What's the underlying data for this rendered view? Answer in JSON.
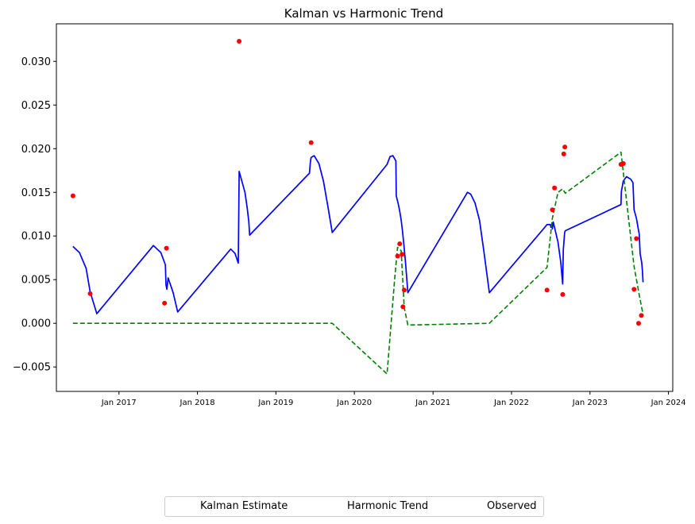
{
  "chart_data": {
    "type": "line",
    "title": "Kalman vs Harmonic Trend",
    "xlabel": "",
    "ylabel": "",
    "x_ticks": [
      "Jan 2017",
      "Jan 2018",
      "Jan 2019",
      "Jan 2020",
      "Jan 2021",
      "Jan 2022",
      "Jan 2023",
      "Jan 2024"
    ],
    "y_ticks": [
      "−0.005",
      "0.000",
      "0.005",
      "0.010",
      "0.015",
      "0.020",
      "0.025",
      "0.030"
    ],
    "xlim": [
      "2016-03-16",
      "2024-01-21"
    ],
    "ylim": [
      -0.0078,
      0.0343
    ],
    "grid": false,
    "legend_position": "bottom-center",
    "series": [
      {
        "name": "Kalman Estimate",
        "style": "solid",
        "color": "#0000ff",
        "points": [
          [
            "2016-06-01",
            0.0088
          ],
          [
            "2016-07-01",
            0.0081
          ],
          [
            "2016-08-01",
            0.0063
          ],
          [
            "2016-08-20",
            0.0036
          ],
          [
            "2016-09-20",
            0.0011
          ],
          [
            "2017-06-10",
            0.0089
          ],
          [
            "2017-07-15",
            0.0081
          ],
          [
            "2017-08-05",
            0.0067
          ],
          [
            "2017-08-08",
            0.0044
          ],
          [
            "2017-08-12",
            0.0039
          ],
          [
            "2017-08-18",
            0.0052
          ],
          [
            "2017-09-10",
            0.0035
          ],
          [
            "2017-10-01",
            0.0013
          ],
          [
            "2018-06-05",
            0.0085
          ],
          [
            "2018-06-25",
            0.008
          ],
          [
            "2018-07-10",
            0.0069
          ],
          [
            "2018-07-14",
            0.0174
          ],
          [
            "2018-08-10",
            0.015
          ],
          [
            "2018-08-20",
            0.0133
          ],
          [
            "2018-08-28",
            0.0117
          ],
          [
            "2018-09-01",
            0.0101
          ],
          [
            "2019-06-06",
            0.0172
          ],
          [
            "2019-06-10",
            0.0184
          ],
          [
            "2019-06-14",
            0.019
          ],
          [
            "2019-06-28",
            0.0192
          ],
          [
            "2019-07-20",
            0.0183
          ],
          [
            "2019-08-10",
            0.0163
          ],
          [
            "2019-08-30",
            0.0135
          ],
          [
            "2019-09-20",
            0.0104
          ],
          [
            "2020-06-01",
            0.0182
          ],
          [
            "2020-06-15",
            0.0191
          ],
          [
            "2020-06-28",
            0.0192
          ],
          [
            "2020-07-12",
            0.0186
          ],
          [
            "2020-07-14",
            0.0146
          ],
          [
            "2020-07-24",
            0.0136
          ],
          [
            "2020-07-30",
            0.0128
          ],
          [
            "2020-08-06",
            0.0118
          ],
          [
            "2020-08-12",
            0.0105
          ],
          [
            "2020-08-20",
            0.0086
          ],
          [
            "2020-08-26",
            0.0069
          ],
          [
            "2020-09-06",
            0.0035
          ],
          [
            "2021-06-10",
            0.015
          ],
          [
            "2021-06-25",
            0.0148
          ],
          [
            "2021-07-15",
            0.0138
          ],
          [
            "2021-08-05",
            0.0118
          ],
          [
            "2021-08-25",
            0.0083
          ],
          [
            "2021-09-20",
            0.0035
          ],
          [
            "2022-06-15",
            0.0113
          ],
          [
            "2022-07-01",
            0.0113
          ],
          [
            "2022-07-03",
            0.011
          ],
          [
            "2022-07-08",
            0.0113
          ],
          [
            "2022-07-10",
            0.0108
          ],
          [
            "2022-07-14",
            0.0116
          ],
          [
            "2022-07-20",
            0.011
          ],
          [
            "2022-08-05",
            0.0093
          ],
          [
            "2022-08-18",
            0.007
          ],
          [
            "2022-08-27",
            0.0045
          ],
          [
            "2022-08-30",
            0.0084
          ],
          [
            "2022-09-05",
            0.0104
          ],
          [
            "2022-09-08",
            0.0106
          ],
          [
            "2023-05-25",
            0.0136
          ],
          [
            "2023-05-27",
            0.0151
          ],
          [
            "2023-06-05",
            0.0163
          ],
          [
            "2023-06-20",
            0.0168
          ],
          [
            "2023-07-10",
            0.0165
          ],
          [
            "2023-07-20",
            0.0161
          ],
          [
            "2023-07-25",
            0.013
          ],
          [
            "2023-08-05",
            0.012
          ],
          [
            "2023-08-12",
            0.011
          ],
          [
            "2023-08-18",
            0.0102
          ],
          [
            "2023-08-22",
            0.008
          ],
          [
            "2023-08-30",
            0.0069
          ],
          [
            "2023-09-02",
            0.006
          ],
          [
            "2023-09-05",
            0.0047
          ]
        ]
      },
      {
        "name": "Harmonic Trend",
        "style": "dashed",
        "color": "#008000",
        "points": [
          [
            "2016-06-01",
            0.0
          ],
          [
            "2019-09-20",
            0.0
          ],
          [
            "2020-06-01",
            -0.0058
          ],
          [
            "2020-07-07",
            0.0052
          ],
          [
            "2020-07-20",
            0.0087
          ],
          [
            "2020-08-06",
            0.0083
          ],
          [
            "2020-08-20",
            0.0018
          ],
          [
            "2020-09-06",
            -0.0002
          ],
          [
            "2021-09-20",
            0.0
          ],
          [
            "2022-06-15",
            0.0064
          ],
          [
            "2022-07-10",
            0.012
          ],
          [
            "2022-08-05",
            0.015
          ],
          [
            "2022-08-27",
            0.0154
          ],
          [
            "2022-09-08",
            0.0149
          ],
          [
            "2023-05-25",
            0.0196
          ],
          [
            "2023-07-25",
            0.0065
          ],
          [
            "2023-08-20",
            0.003
          ],
          [
            "2023-09-05",
            0.001
          ]
        ]
      },
      {
        "name": "Observed",
        "style": "points",
        "color": "#ff0000",
        "points": [
          [
            "2016-06-01",
            0.0146
          ],
          [
            "2016-08-20",
            0.0034
          ],
          [
            "2017-08-01",
            0.0023
          ],
          [
            "2017-08-10",
            0.0086
          ],
          [
            "2018-07-14",
            0.0323
          ],
          [
            "2019-06-14",
            0.0207
          ],
          [
            "2020-07-20",
            0.0077
          ],
          [
            "2020-07-30",
            0.0091
          ],
          [
            "2020-08-10",
            0.0079
          ],
          [
            "2020-08-14",
            0.0019
          ],
          [
            "2020-08-20",
            0.0038
          ],
          [
            "2022-06-15",
            0.0038
          ],
          [
            "2022-07-10",
            0.013
          ],
          [
            "2022-07-20",
            0.0155
          ],
          [
            "2022-08-27",
            0.0033
          ],
          [
            "2022-09-01",
            0.0194
          ],
          [
            "2022-09-06",
            0.0202
          ],
          [
            "2023-05-25",
            0.0182
          ],
          [
            "2023-06-05",
            0.0183
          ],
          [
            "2023-07-25",
            0.0039
          ],
          [
            "2023-08-05",
            0.0097
          ],
          [
            "2023-08-15",
            0.0
          ],
          [
            "2023-08-28",
            0.0009
          ]
        ]
      }
    ]
  }
}
